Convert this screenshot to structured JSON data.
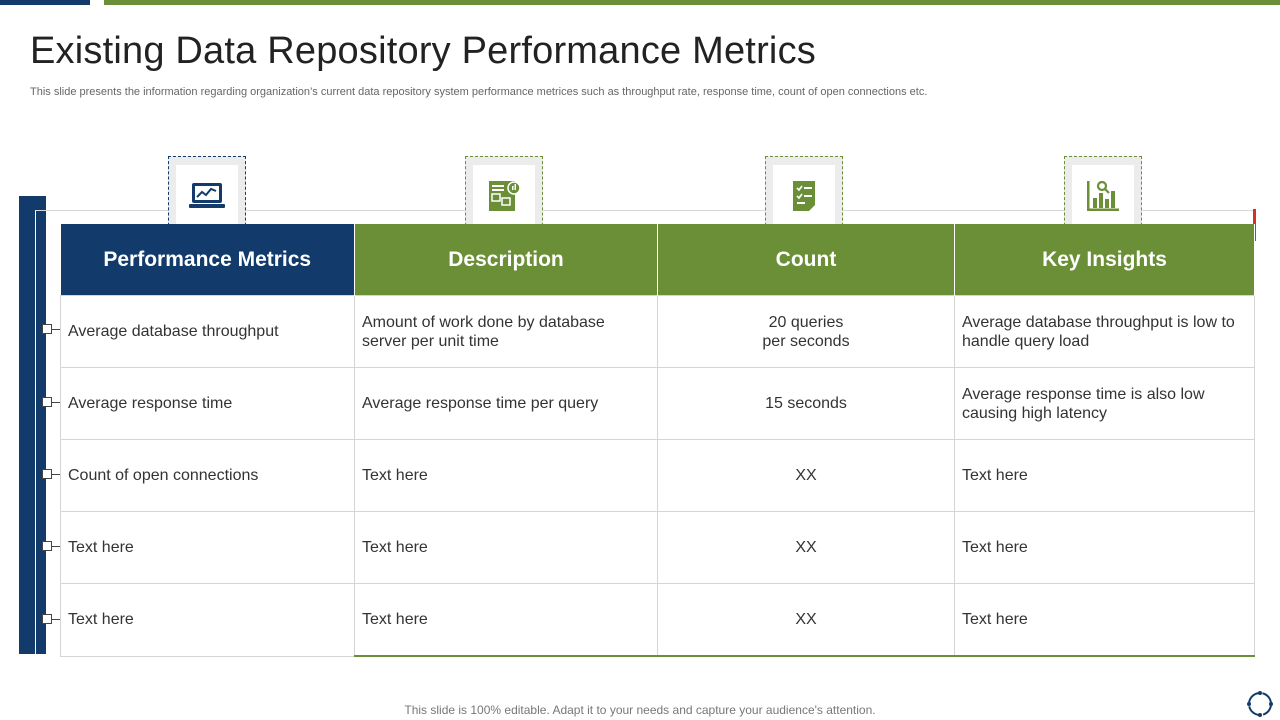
{
  "slide": {
    "title": "Existing Data Repository Performance Metrics",
    "subtitle": "This slide presents the information regarding organization’s current data repository system performance metrices such as throughput rate, response time, count of open connections etc.",
    "footer": "This slide is 100% editable. Adapt it to your needs and capture your audience's attention."
  },
  "table": {
    "headers": [
      "Performance Metrics",
      "Description",
      "Count",
      "Key Insights"
    ],
    "header_icons": [
      "laptop-chart-icon",
      "report-document-icon",
      "checklist-icon",
      "analytics-chart-icon"
    ],
    "rows": [
      [
        "Average database throughput",
        "Amount of work done by database server per unit time",
        "20 queries\nper seconds",
        "Average database throughput  is low to handle query load"
      ],
      [
        "Average response time",
        "Average response time per query",
        "15 seconds",
        "Average response time is also low causing high latency"
      ],
      [
        "Count of open connections",
        "Text here",
        "XX",
        "Text here"
      ],
      [
        "Text here",
        "Text here",
        "XX",
        "Text here"
      ],
      [
        "Text here",
        "Text here",
        "XX",
        "Text here"
      ]
    ]
  },
  "colors": {
    "navy": "#123a6b",
    "green": "#6b8f36",
    "accent_red": "#d93025"
  }
}
